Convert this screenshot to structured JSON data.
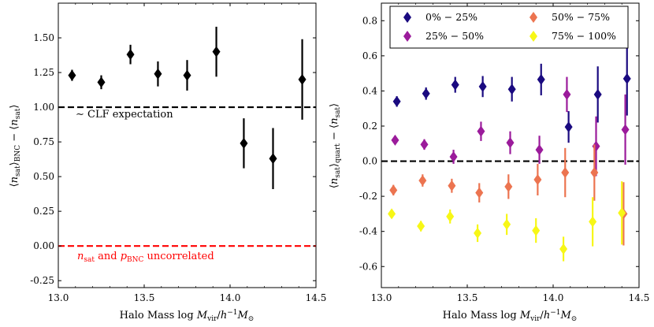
{
  "chart_data": [
    {
      "type": "scatter",
      "panel": "left",
      "xlabel": "Halo Mass log M_vir/h^-1 M_sun",
      "ylabel": "<n_sat>_BNC - <n_sat>",
      "xlim": [
        13.0,
        14.5
      ],
      "ylim": [
        -0.3,
        1.75
      ],
      "xticks": [
        "13.0",
        "13.5",
        "14.0",
        "14.5"
      ],
      "yticks": [
        "-0.25",
        "0.00",
        "0.25",
        "0.50",
        "0.75",
        "1.00",
        "1.25",
        "1.50"
      ],
      "marker_color": "#000000",
      "points": [
        {
          "x": 13.08,
          "y": 1.23,
          "err": 0.04
        },
        {
          "x": 13.25,
          "y": 1.18,
          "err": 0.05
        },
        {
          "x": 13.42,
          "y": 1.38,
          "err": 0.07
        },
        {
          "x": 13.58,
          "y": 1.24,
          "err": 0.09
        },
        {
          "x": 13.75,
          "y": 1.23,
          "err": 0.11
        },
        {
          "x": 13.92,
          "y": 1.4,
          "err": 0.18
        },
        {
          "x": 14.08,
          "y": 0.74,
          "err": 0.18
        },
        {
          "x": 14.25,
          "y": 0.63,
          "err": 0.22
        },
        {
          "x": 14.42,
          "y": 1.2,
          "err": 0.29
        }
      ],
      "reference_lines": [
        {
          "y": 1.0,
          "color": "#000000",
          "label": "~ CLF expectation"
        },
        {
          "y": 0.0,
          "color": "#ff0000",
          "label": "n_sat and p_BNC uncorrelated"
        }
      ]
    },
    {
      "type": "scatter",
      "panel": "right",
      "xlabel": "Halo Mass log M_vir/h^-1 M_sun",
      "ylabel": "<n_sat>_quart - <n_sat>",
      "xlim": [
        13.0,
        14.5
      ],
      "ylim": [
        -0.72,
        0.9
      ],
      "xticks": [
        "13.0",
        "13.5",
        "14.0",
        "14.5"
      ],
      "yticks": [
        "-0.6",
        "-0.4",
        "-0.2",
        "0.0",
        "0.2",
        "0.4",
        "0.6",
        "0.8"
      ],
      "reference_lines": [
        {
          "y": 0.0,
          "color": "#000000"
        }
      ],
      "legend_position": "top",
      "series": [
        {
          "name": "0% − 25%",
          "color": "#1a0a80",
          "points": [
            {
              "x": 13.09,
              "y": 0.34,
              "err": 0.03
            },
            {
              "x": 13.26,
              "y": 0.385,
              "err": 0.035
            },
            {
              "x": 13.43,
              "y": 0.435,
              "err": 0.045
            },
            {
              "x": 13.59,
              "y": 0.425,
              "err": 0.06
            },
            {
              "x": 13.76,
              "y": 0.41,
              "err": 0.07
            },
            {
              "x": 13.93,
              "y": 0.465,
              "err": 0.09
            },
            {
              "x": 14.09,
              "y": 0.195,
              "err": 0.09
            },
            {
              "x": 14.26,
              "y": 0.38,
              "err": 0.16
            },
            {
              "x": 14.43,
              "y": 0.47,
              "err": 0.21
            }
          ]
        },
        {
          "name": "25% − 50%",
          "color": "#9b1b9b",
          "points": [
            {
              "x": 13.08,
              "y": 0.12,
              "err": 0.025
            },
            {
              "x": 13.25,
              "y": 0.095,
              "err": 0.03
            },
            {
              "x": 13.42,
              "y": 0.025,
              "err": 0.04
            },
            {
              "x": 13.58,
              "y": 0.17,
              "err": 0.055
            },
            {
              "x": 13.75,
              "y": 0.105,
              "err": 0.065
            },
            {
              "x": 13.92,
              "y": 0.065,
              "err": 0.08
            },
            {
              "x": 14.08,
              "y": 0.38,
              "err": 0.1
            },
            {
              "x": 14.25,
              "y": 0.085,
              "err": 0.17
            },
            {
              "x": 14.42,
              "y": 0.18,
              "err": 0.2
            }
          ]
        },
        {
          "name": "50% − 75%",
          "color": "#ec7450",
          "points": [
            {
              "x": 13.07,
              "y": -0.165,
              "err": 0.03
            },
            {
              "x": 13.24,
              "y": -0.11,
              "err": 0.035
            },
            {
              "x": 13.41,
              "y": -0.14,
              "err": 0.04
            },
            {
              "x": 13.57,
              "y": -0.18,
              "err": 0.055
            },
            {
              "x": 13.74,
              "y": -0.145,
              "err": 0.07
            },
            {
              "x": 13.91,
              "y": -0.105,
              "err": 0.09
            },
            {
              "x": 14.07,
              "y": -0.065,
              "err": 0.14
            },
            {
              "x": 14.24,
              "y": -0.065,
              "err": 0.16
            },
            {
              "x": 14.41,
              "y": -0.3,
              "err": 0.18
            }
          ]
        },
        {
          "name": "75% − 100%",
          "color": "#f7f716",
          "points": [
            {
              "x": 13.06,
              "y": -0.3,
              "err": 0.025
            },
            {
              "x": 13.23,
              "y": -0.37,
              "err": 0.03
            },
            {
              "x": 13.4,
              "y": -0.315,
              "err": 0.04
            },
            {
              "x": 13.56,
              "y": -0.41,
              "err": 0.05
            },
            {
              "x": 13.73,
              "y": -0.36,
              "err": 0.06
            },
            {
              "x": 13.9,
              "y": -0.395,
              "err": 0.07
            },
            {
              "x": 14.06,
              "y": -0.5,
              "err": 0.07
            },
            {
              "x": 14.23,
              "y": -0.345,
              "err": 0.14
            },
            {
              "x": 14.4,
              "y": -0.295,
              "err": 0.18
            }
          ]
        }
      ]
    }
  ]
}
